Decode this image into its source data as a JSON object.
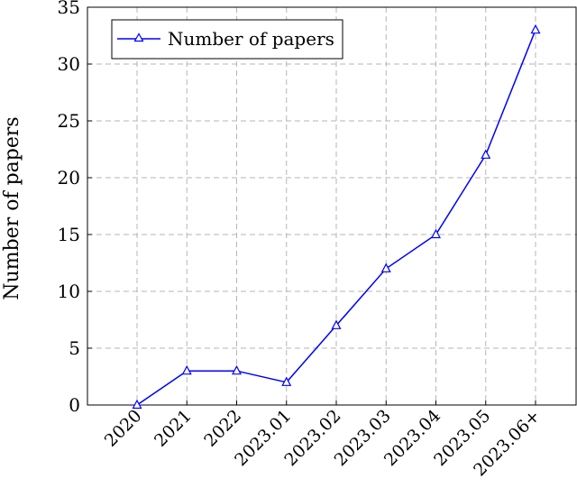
{
  "chart_data": {
    "type": "line",
    "title": "",
    "xlabel": "",
    "ylabel": "Number of papers",
    "categories": [
      "2020",
      "2021",
      "2022",
      "2023.01",
      "2023.02",
      "2023.03",
      "2023.04",
      "2023.05",
      "2023.06+"
    ],
    "series": [
      {
        "name": "Number of papers",
        "values": [
          0,
          3,
          3,
          2,
          7,
          12,
          15,
          22,
          33
        ],
        "color": "#0000ff",
        "marker": "triangle-open"
      }
    ],
    "ylim": [
      0,
      35
    ],
    "yticks": [
      0,
      5,
      10,
      15,
      20,
      25,
      30,
      35
    ],
    "grid": true,
    "grid_style": "dashed",
    "legend_position": "top-left"
  }
}
